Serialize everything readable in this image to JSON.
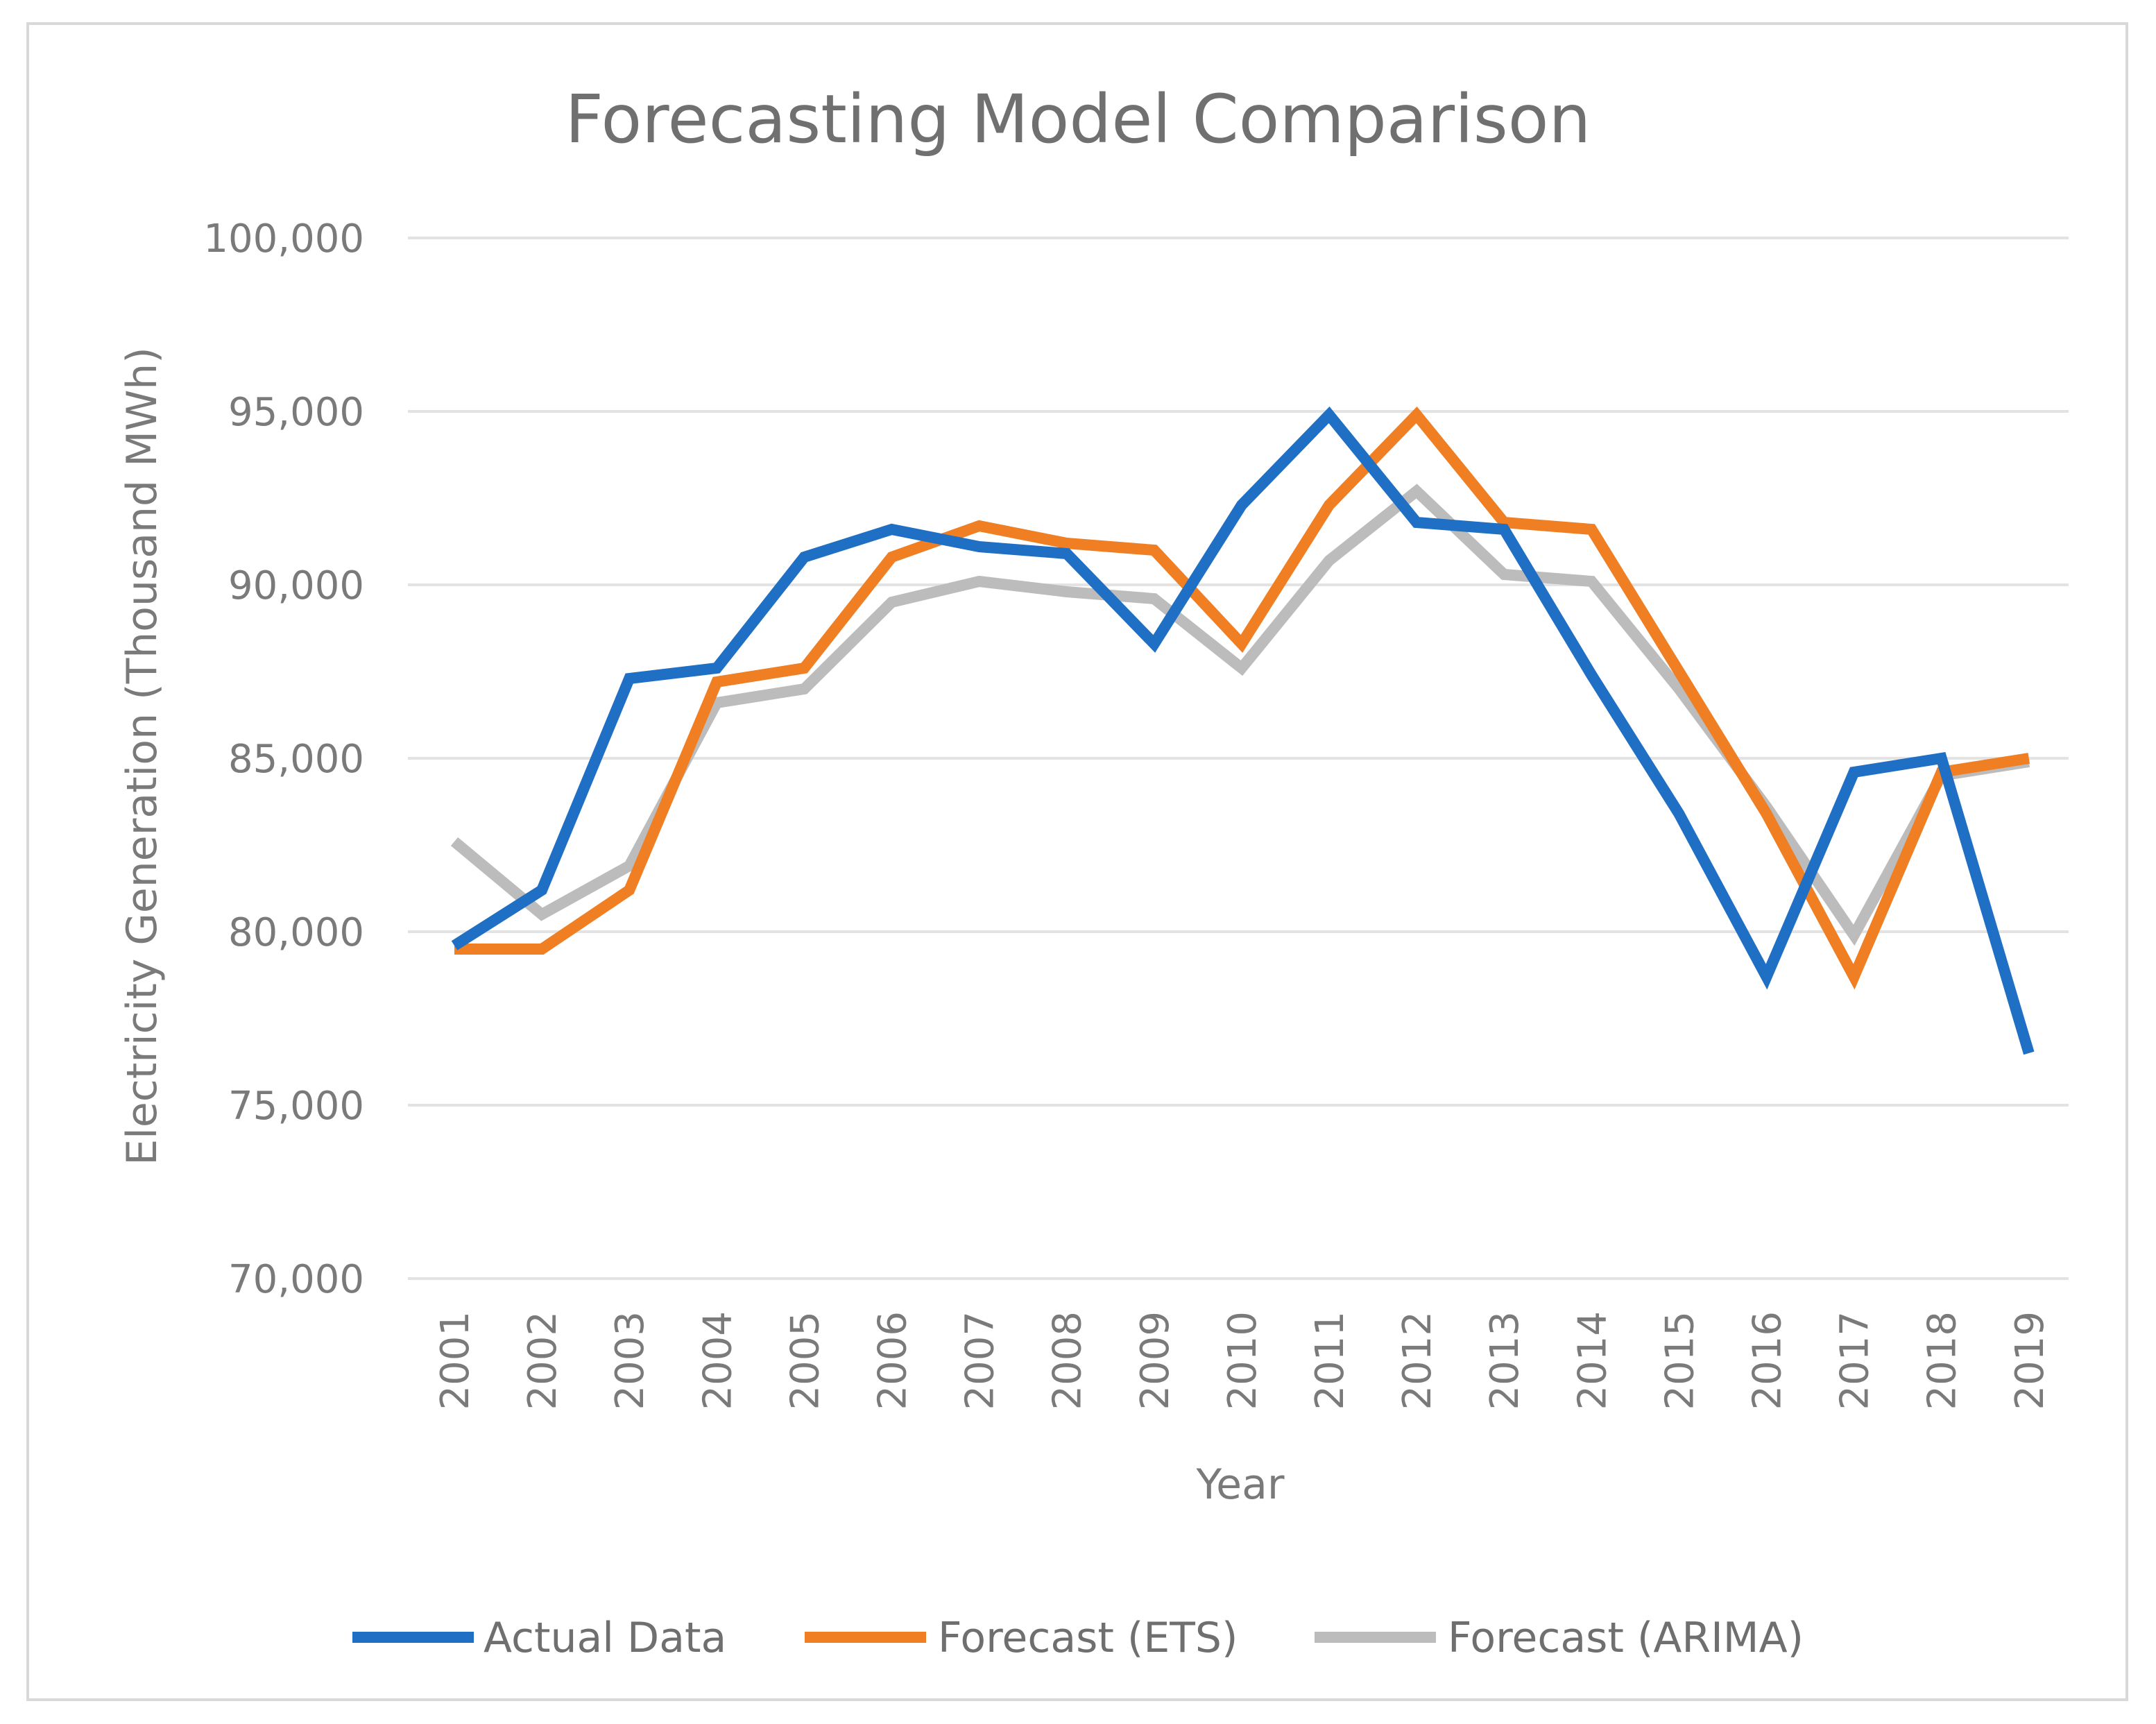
{
  "chart_data": {
    "type": "line",
    "title": "Forecasting Model Comparison",
    "xlabel": "Year",
    "ylabel": "Electricity  Generation  (Thousand  MWh)",
    "ylim": [
      70000,
      100000
    ],
    "y_ticks": [
      70000,
      75000,
      80000,
      85000,
      90000,
      95000,
      100000
    ],
    "y_tick_labels": [
      "70,000",
      "75,000",
      "80,000",
      "85,000",
      "90,000",
      "95,000",
      "100,000"
    ],
    "grid": true,
    "legend_position": "bottom",
    "categories": [
      "2001",
      "2002",
      "2003",
      "2004",
      "2005",
      "2006",
      "2007",
      "2008",
      "2009",
      "2010",
      "2011",
      "2012",
      "2013",
      "2014",
      "2015",
      "2016",
      "2017",
      "2018",
      "2019"
    ],
    "series": [
      {
        "name": "Actual Data",
        "color": "#1f6fc5",
        "values": [
          79600,
          81200,
          87300,
          87600,
          90800,
          91600,
          91100,
          90900,
          88300,
          92300,
          94900,
          91800,
          91600,
          87400,
          83400,
          78700,
          84600,
          85000,
          76500
        ]
      },
      {
        "name": "Forecast (ETS)",
        "color": "#f07f24",
        "values": [
          79500,
          79500,
          81200,
          87200,
          87600,
          90800,
          91700,
          91200,
          91000,
          88300,
          92300,
          94900,
          91800,
          91600,
          87500,
          83400,
          78700,
          84600,
          85000
        ]
      },
      {
        "name": "Forecast (ARIMA)",
        "color": "#bcbcbc",
        "values": [
          82600,
          80500,
          81900,
          86600,
          87000,
          89500,
          90100,
          89800,
          89600,
          87600,
          90700,
          92700,
          90300,
          90100,
          87000,
          83600,
          79900,
          84500,
          84900
        ]
      }
    ]
  }
}
